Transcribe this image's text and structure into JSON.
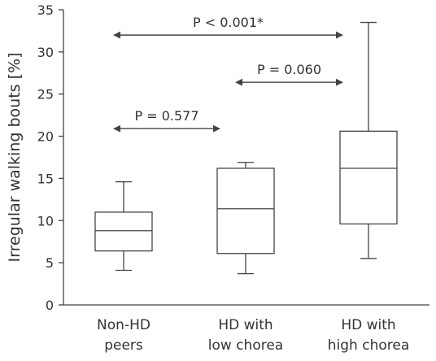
{
  "chart_data": {
    "type": "box",
    "title": "",
    "xlabel": "",
    "ylabel": "Irregular walking bouts [%]",
    "ylim": [
      0,
      35
    ],
    "yticks": [
      "0",
      "5",
      "10",
      "15",
      "20",
      "25",
      "30",
      "35"
    ],
    "grid": false,
    "categories": [
      [
        "Non-HD",
        "peers"
      ],
      [
        "HD with",
        "low chorea"
      ],
      [
        "HD with",
        "high chorea"
      ]
    ],
    "boxes": [
      {
        "min": 4.1,
        "q1": 6.4,
        "median": 8.8,
        "q3": 11.0,
        "max": 14.6
      },
      {
        "min": 3.7,
        "q1": 6.1,
        "median": 11.4,
        "q3": 16.2,
        "max": 16.9
      },
      {
        "min": 5.5,
        "q1": 9.6,
        "median": 16.2,
        "q3": 20.6,
        "max": 33.5
      }
    ],
    "comparisons": [
      {
        "from": 0,
        "to": 1,
        "level": 20.9,
        "label": "P = 0.577"
      },
      {
        "from": 1,
        "to": 2,
        "level": 26.4,
        "label": "P = 0.060"
      },
      {
        "from": 0,
        "to": 2,
        "level": 32.0,
        "label": "P < 0.001*"
      }
    ],
    "color": "#444444"
  }
}
